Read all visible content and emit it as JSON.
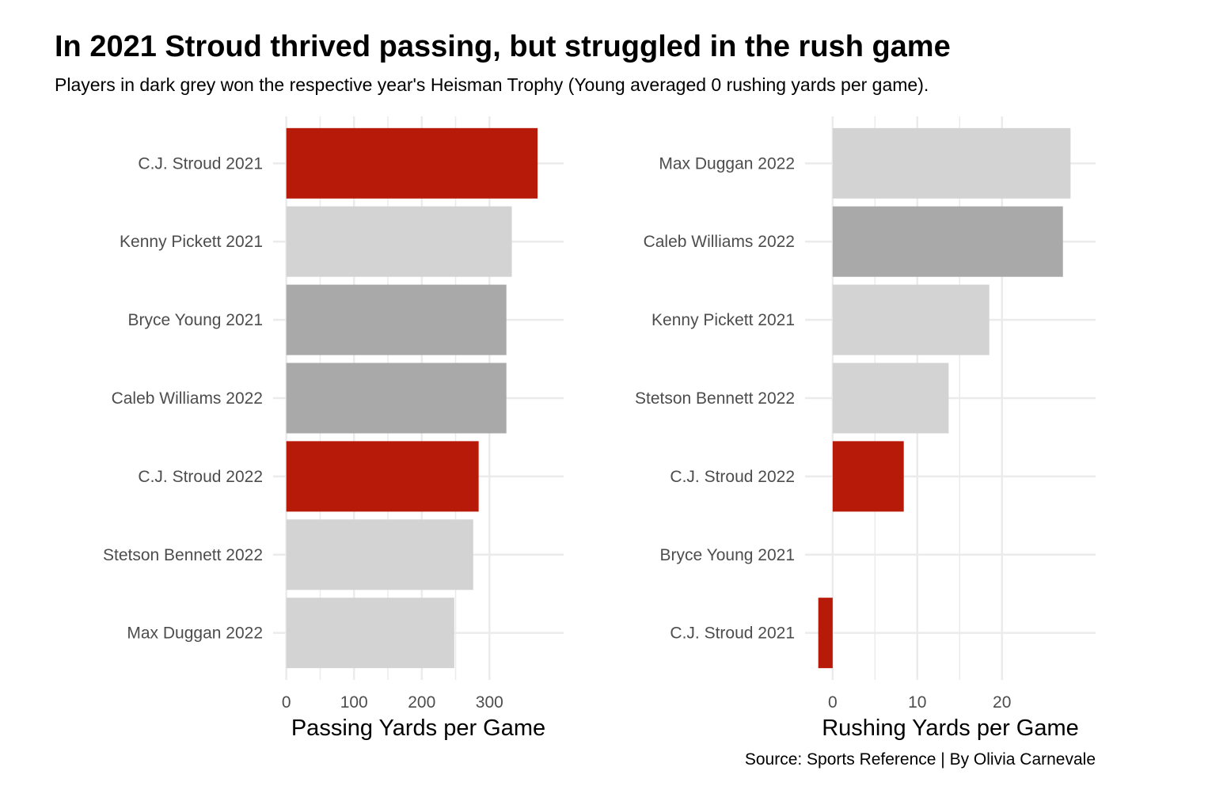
{
  "title": "In 2021 Stroud thrived passing, but struggled in the rush game",
  "subtitle": "Players in dark grey won the respective year's Heisman Trophy (Young averaged 0 rushing yards per game).",
  "caption": "Source: Sports Reference | By Olivia Carnevale",
  "colors": {
    "stroud": "#b81a0a",
    "heisman": "#a9a9a9",
    "other": "#d3d3d3",
    "grid": "#ebebeb"
  },
  "chart_data": [
    {
      "type": "bar",
      "orientation": "horizontal",
      "xlabel": "Passing Yards per Game",
      "xlim": [
        0,
        390
      ],
      "xticks": [
        0,
        100,
        200,
        300
      ],
      "grid": true,
      "categories": [
        "C.J. Stroud 2021",
        "Kenny Pickett 2021",
        "Bryce Young 2021",
        "Caleb Williams 2022",
        "C.J. Stroud 2022",
        "Stetson Bennett 2022",
        "Max Duggan 2022"
      ],
      "values": [
        371,
        333,
        325,
        325,
        284,
        276,
        248
      ],
      "groups": [
        "stroud",
        "other",
        "heisman",
        "heisman",
        "stroud",
        "other",
        "other"
      ]
    },
    {
      "type": "bar",
      "orientation": "horizontal",
      "xlabel": "Rushing Yards per Game",
      "xlim": [
        -1.7,
        29.5
      ],
      "xticks": [
        0,
        10,
        20
      ],
      "grid": true,
      "categories": [
        "Max Duggan 2022",
        "Caleb Williams 2022",
        "Kenny Pickett 2021",
        "Stetson Bennett 2022",
        "C.J. Stroud 2022",
        "Bryce Young 2021",
        "C.J. Stroud 2021"
      ],
      "values": [
        28.1,
        27.2,
        18.5,
        13.7,
        8.4,
        0,
        -1.7
      ],
      "groups": [
        "other",
        "heisman",
        "other",
        "other",
        "stroud",
        "heisman",
        "stroud"
      ]
    }
  ]
}
